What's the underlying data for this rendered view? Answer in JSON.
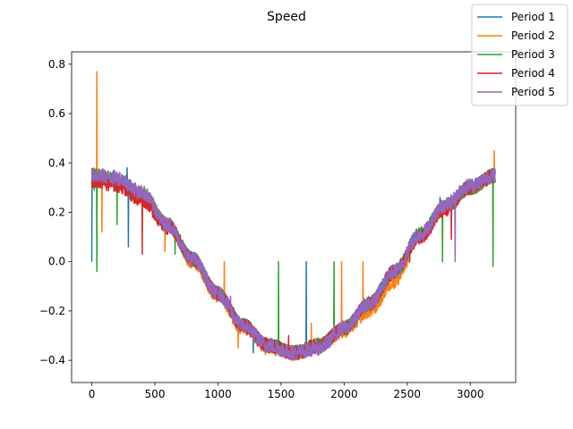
{
  "chart_data": {
    "type": "line",
    "title": "Speed",
    "xlabel": "",
    "ylabel": "",
    "xlim": [
      -160,
      3360
    ],
    "ylim": [
      -0.49,
      0.85
    ],
    "x_ticks": [
      0,
      500,
      1000,
      1500,
      2000,
      2500,
      3000
    ],
    "y_ticks": [
      -0.4,
      -0.2,
      0.0,
      0.2,
      0.4,
      0.6,
      0.8
    ],
    "x_tick_labels": [
      "0",
      "500",
      "1000",
      "1500",
      "2000",
      "2500",
      "3000"
    ],
    "y_tick_labels": [
      "−0.4",
      "−0.2",
      "0.0",
      "0.2",
      "0.4",
      "0.6",
      "0.8"
    ],
    "grid": false,
    "legend_position": "top-right",
    "n_points": 3200,
    "noise_amplitude": 0.03,
    "series": [
      {
        "name": "Period 1",
        "color": "#1f77b4",
        "curve_x": [
          0,
          200,
          400,
          600,
          800,
          1000,
          1200,
          1400,
          1600,
          1800,
          2000,
          2200,
          2400,
          2600,
          2800,
          3000,
          3200
        ],
        "curve_y": [
          0.35,
          0.33,
          0.27,
          0.15,
          0.01,
          -0.13,
          -0.26,
          -0.34,
          -0.37,
          -0.34,
          -0.27,
          -0.17,
          -0.04,
          0.11,
          0.22,
          0.3,
          0.35
        ],
        "spikes": [
          [
            0,
            0.0
          ],
          [
            280,
            0.38
          ],
          [
            290,
            0.06
          ],
          [
            1280,
            -0.37
          ],
          [
            1700,
            0.0
          ],
          [
            2120,
            -0.2
          ],
          [
            2760,
            0.26
          ],
          [
            3180,
            0.32
          ]
        ]
      },
      {
        "name": "Period 2",
        "color": "#ff7f0e",
        "curve_x": [
          0,
          200,
          400,
          600,
          800,
          1000,
          1200,
          1400,
          1600,
          1800,
          2000,
          2200,
          2400,
          2600,
          2800,
          3000,
          3200
        ],
        "curve_y": [
          0.35,
          0.33,
          0.27,
          0.15,
          0.0,
          -0.14,
          -0.27,
          -0.35,
          -0.37,
          -0.34,
          -0.28,
          -0.2,
          -0.08,
          0.1,
          0.22,
          0.3,
          0.35
        ],
        "spikes": [
          [
            40,
            0.77
          ],
          [
            80,
            0.12
          ],
          [
            580,
            0.04
          ],
          [
            1050,
            0.0
          ],
          [
            1160,
            -0.35
          ],
          [
            1740,
            -0.25
          ],
          [
            1980,
            0.0
          ],
          [
            2150,
            0.0
          ],
          [
            3190,
            0.45
          ]
        ]
      },
      {
        "name": "Period 3",
        "color": "#2ca02c",
        "curve_x": [
          0,
          200,
          400,
          600,
          800,
          1000,
          1200,
          1400,
          1600,
          1800,
          2000,
          2200,
          2400,
          2600,
          2800,
          3000,
          3200
        ],
        "curve_y": [
          0.35,
          0.33,
          0.27,
          0.15,
          0.01,
          -0.13,
          -0.26,
          -0.34,
          -0.37,
          -0.34,
          -0.27,
          -0.17,
          -0.04,
          0.11,
          0.22,
          0.3,
          0.35
        ],
        "spikes": [
          [
            20,
            0.29
          ],
          [
            40,
            -0.04
          ],
          [
            200,
            0.15
          ],
          [
            660,
            0.03
          ],
          [
            1480,
            0.0
          ],
          [
            1920,
            0.0
          ],
          [
            2780,
            0.0
          ],
          [
            3180,
            -0.02
          ]
        ]
      },
      {
        "name": "Period 4",
        "color": "#d62728",
        "curve_x": [
          0,
          200,
          400,
          600,
          800,
          1000,
          1200,
          1400,
          1600,
          1800,
          2000,
          2200,
          2400,
          2600,
          2800,
          3000,
          3200
        ],
        "curve_y": [
          0.33,
          0.31,
          0.25,
          0.14,
          0.01,
          -0.13,
          -0.26,
          -0.34,
          -0.37,
          -0.34,
          -0.27,
          -0.17,
          -0.04,
          0.1,
          0.21,
          0.3,
          0.35
        ],
        "spikes": [
          [
            400,
            0.03
          ],
          [
            1560,
            -0.3
          ],
          [
            2520,
            0.0
          ],
          [
            2850,
            0.09
          ]
        ]
      },
      {
        "name": "Period 5",
        "color": "#9467bd",
        "curve_x": [
          0,
          200,
          400,
          600,
          800,
          1000,
          1200,
          1400,
          1600,
          1800,
          2000,
          2200,
          2400,
          2600,
          2800,
          3000,
          3200
        ],
        "curve_y": [
          0.35,
          0.34,
          0.28,
          0.15,
          0.01,
          -0.13,
          -0.26,
          -0.34,
          -0.37,
          -0.35,
          -0.27,
          -0.17,
          -0.04,
          0.11,
          0.23,
          0.31,
          0.35
        ],
        "spikes": [
          [
            1100,
            -0.14
          ],
          [
            2880,
            0.0
          ]
        ]
      }
    ]
  }
}
